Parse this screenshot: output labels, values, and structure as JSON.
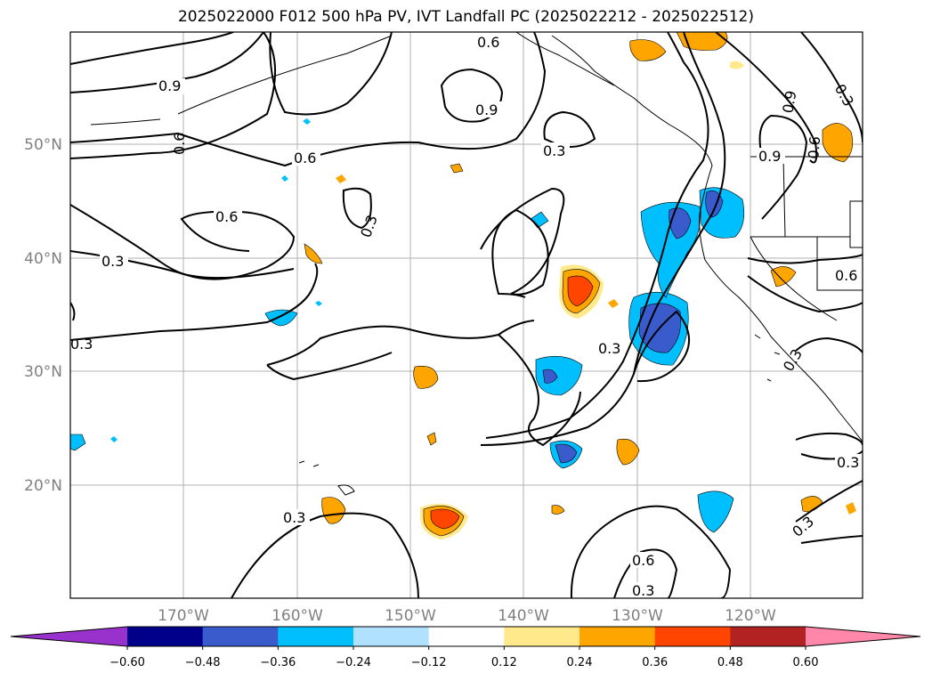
{
  "title": "2025022000 F012 500 hPa PV, IVT Landfall PC (2025022212 - 2025022512)",
  "map": {
    "lon_ticks": [
      "170°W",
      "160°W",
      "150°W",
      "140°W",
      "130°W",
      "120°W"
    ],
    "lat_ticks": [
      "50°N",
      "40°N",
      "30°N",
      "20°N"
    ],
    "contour_labels": [
      "0.3",
      "0.6",
      "0.9"
    ]
  },
  "colorbar": {
    "ticks": [
      "−0.60",
      "−0.48",
      "−0.36",
      "−0.24",
      "−0.12",
      "0.12",
      "0.24",
      "0.36",
      "0.48",
      "0.60"
    ],
    "colors": [
      "#9932cc",
      "#00008b",
      "#3a5bcc",
      "#00bfff",
      "#b0e2ff",
      "#ffffff",
      "#ffe98a",
      "#ffa500",
      "#ff4500",
      "#b22222",
      "#ff88aa"
    ]
  }
}
